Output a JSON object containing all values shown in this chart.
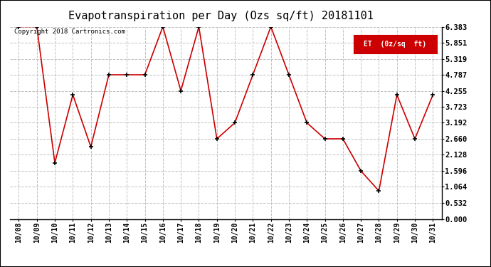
{
  "title": "Evapotranspiration per Day (Ozs sq/ft) 20181101",
  "copyright": "Copyright 2018 Cartronics.com",
  "legend_label": "ET  (0z/sq  ft)",
  "x_labels": [
    "10/08",
    "10/09",
    "10/10",
    "10/11",
    "10/12",
    "10/13",
    "10/14",
    "10/15",
    "10/16",
    "10/17",
    "10/18",
    "10/19",
    "10/20",
    "10/21",
    "10/22",
    "10/23",
    "10/24",
    "10/25",
    "10/26",
    "10/27",
    "10/28",
    "10/29",
    "10/30",
    "10/31"
  ],
  "y_values": [
    6.383,
    6.383,
    1.862,
    4.122,
    2.394,
    4.787,
    4.787,
    4.787,
    6.383,
    4.255,
    6.383,
    2.66,
    3.192,
    4.787,
    6.383,
    4.787,
    3.192,
    2.66,
    2.66,
    1.596,
    0.93,
    4.122,
    2.66,
    4.122
  ],
  "y_ticks": [
    0.0,
    0.532,
    1.064,
    1.596,
    2.128,
    2.66,
    3.192,
    3.723,
    4.255,
    4.787,
    5.319,
    5.851,
    6.383
  ],
  "y_min": 0.0,
  "y_max": 6.383,
  "line_color": "#cc0000",
  "marker_color": "#000000",
  "background_color": "#ffffff",
  "grid_color": "#c0c0c0",
  "title_fontsize": 11,
  "legend_bg": "#cc0000",
  "legend_text_color": "#ffffff"
}
